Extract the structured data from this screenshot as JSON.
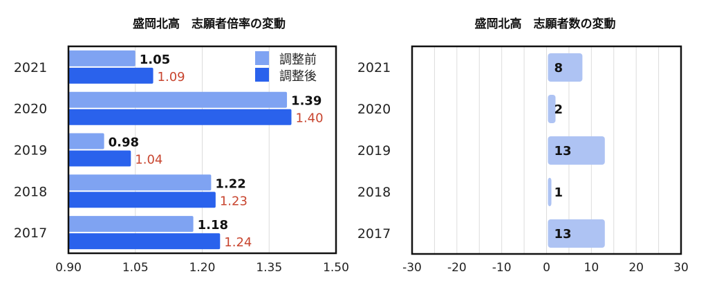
{
  "chart_data": [
    {
      "type": "bar",
      "orientation": "horizontal",
      "title": "盛岡北高　志願者倍率の変動",
      "categories": [
        "2021",
        "2020",
        "2019",
        "2018",
        "2017"
      ],
      "series": [
        {
          "name": "調整前",
          "values": [
            1.05,
            1.39,
            0.98,
            1.22,
            1.18
          ],
          "color": "#7fa3f2",
          "label_color": "#111111"
        },
        {
          "name": "調整後",
          "values": [
            1.09,
            1.4,
            1.04,
            1.23,
            1.24
          ],
          "color": "#2a62ec",
          "label_color": "#c8452f"
        }
      ],
      "xlim": [
        0.9,
        1.5
      ],
      "xticks": [
        "0.90",
        "1.05",
        "1.20",
        "1.35",
        "1.50"
      ],
      "grid": true,
      "legend": "top-right"
    },
    {
      "type": "bar",
      "orientation": "horizontal",
      "title": "盛岡北高　志願者数の変動",
      "categories": [
        "2021",
        "2020",
        "2019",
        "2018",
        "2017"
      ],
      "series": [
        {
          "name": "志願者数の変動",
          "values": [
            8,
            2,
            13,
            1,
            13
          ],
          "color": "#aec3f3",
          "label_color": "#111111"
        }
      ],
      "xlim": [
        -30,
        30
      ],
      "xticks": [
        "-30",
        "-20",
        "-10",
        "0",
        "10",
        "20",
        "30"
      ],
      "grid_step": 5,
      "grid": true
    }
  ]
}
